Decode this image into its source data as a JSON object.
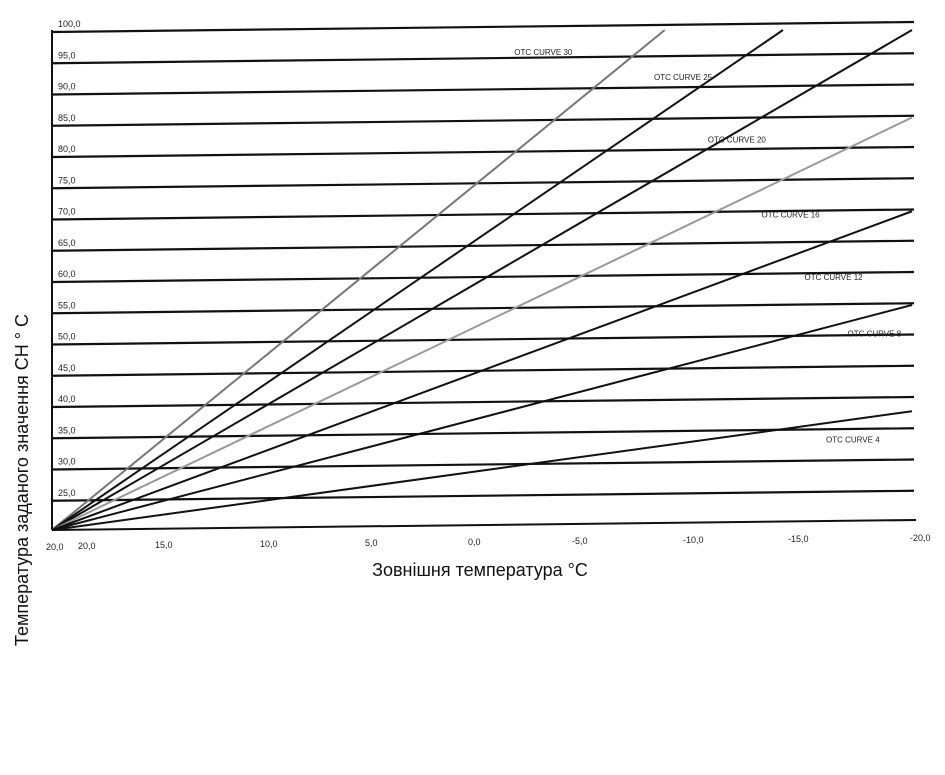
{
  "chart_data": {
    "type": "line",
    "xlabel": "Зовнішня температура °C",
    "ylabel": "Температура заданого значення СН ° С",
    "x_ticks": [
      "20,0",
      "20,0",
      "15,0",
      "10,0",
      "5,0",
      "0,0",
      "-5,0",
      "-10,0",
      "-15,0",
      "-20,0"
    ],
    "y_ticks": [
      "25,0",
      "30,0",
      "35,0",
      "40,0",
      "45,0",
      "50,0",
      "55,0",
      "60,0",
      "65,0",
      "70,0",
      "75,0",
      "80,0",
      "85,0",
      "90,0",
      "95,0",
      "100,0"
    ],
    "xlim": [
      20,
      -20
    ],
    "ylim": [
      20,
      100
    ],
    "grid": true,
    "series": [
      {
        "name": "OTC CURVE 30",
        "x": [
          20,
          -8.5
        ],
        "y": [
          20,
          100
        ],
        "color": "#777777"
      },
      {
        "name": "OTC CURVE 25",
        "x": [
          20,
          -14
        ],
        "y": [
          20,
          100
        ],
        "color": "#111111"
      },
      {
        "name": "OTC CURVE 20",
        "x": [
          20,
          -20
        ],
        "y": [
          20,
          100
        ],
        "color": "#111111"
      },
      {
        "name": "OTC CURVE 16",
        "x": [
          20,
          -20
        ],
        "y": [
          20,
          86
        ],
        "color": "#999999"
      },
      {
        "name": "OTC CURVE 12",
        "x": [
          20,
          -20
        ],
        "y": [
          20,
          71
        ],
        "color": "#111111"
      },
      {
        "name": "OTC CURVE 8",
        "x": [
          20,
          -20
        ],
        "y": [
          20,
          56
        ],
        "color": "#111111"
      },
      {
        "name": "OTC CURVE 4",
        "x": [
          20,
          -20
        ],
        "y": [
          20,
          39
        ],
        "color": "#111111"
      }
    ],
    "labels": [
      {
        "text": "OTC CURVE 30",
        "x": -1.5,
        "y": 96
      },
      {
        "text": "OTC CURVE 25",
        "x": -8,
        "y": 92
      },
      {
        "text": "OTC CURVE 20",
        "x": -10.5,
        "y": 82
      },
      {
        "text": "OTC CURVE 16",
        "x": -13,
        "y": 70
      },
      {
        "text": "OTC CURVE 12",
        "x": -15,
        "y": 60
      },
      {
        "text": "OTC CURVE 8",
        "x": -17,
        "y": 51
      },
      {
        "text": "OTC CURVE 4",
        "x": -16,
        "y": 34
      }
    ]
  }
}
